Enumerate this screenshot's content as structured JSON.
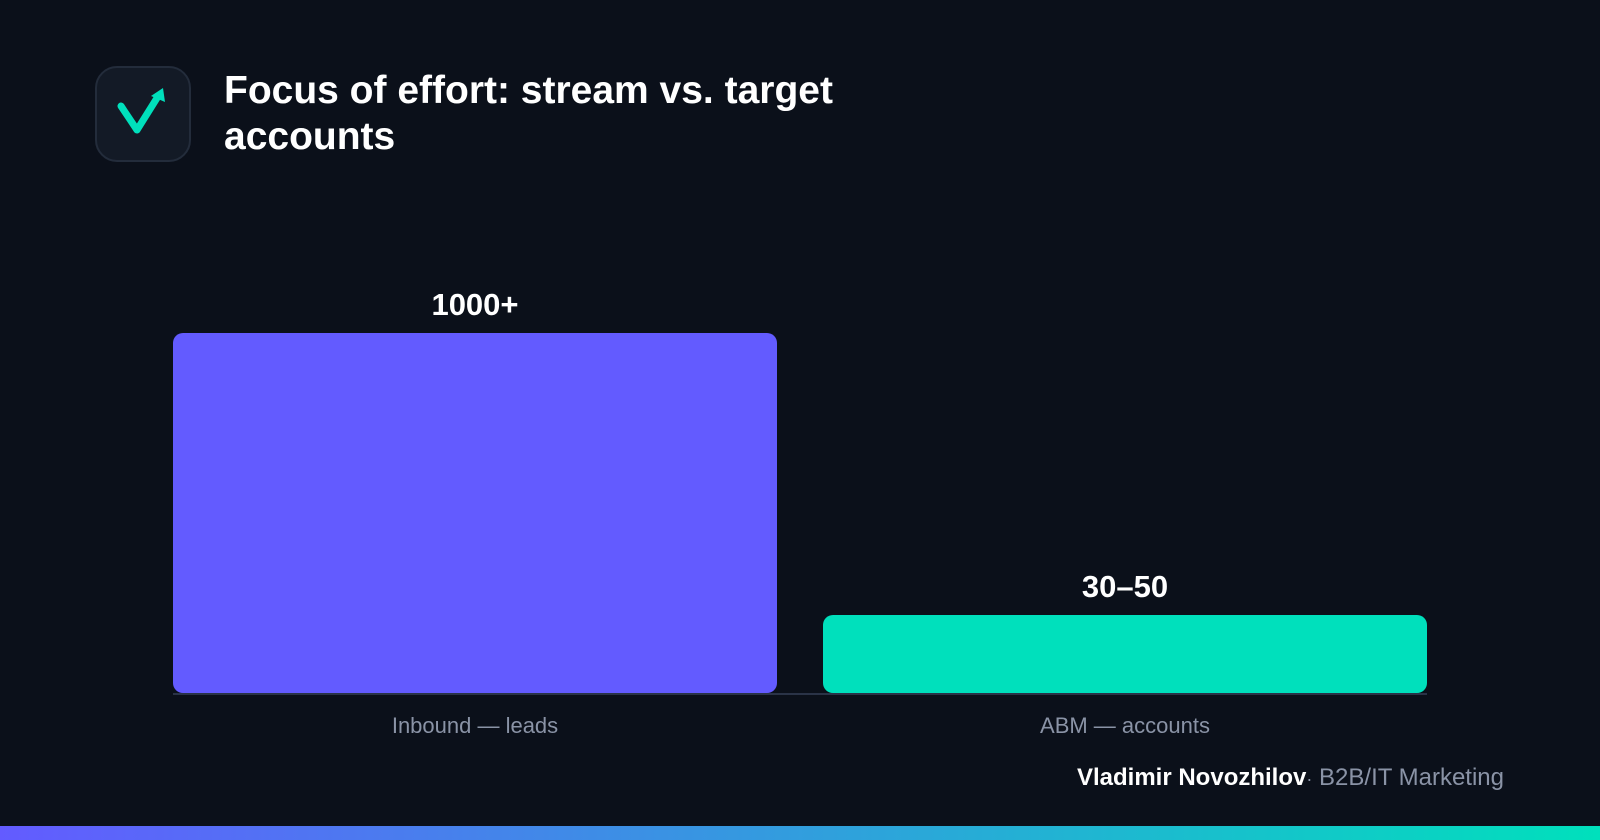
{
  "header": {
    "title": "Focus of effort: stream vs. target accounts",
    "logo_icon": "checkmark-arrow-icon"
  },
  "colors": {
    "background": "#0b101a",
    "inbound": "#635bff",
    "abm": "#00e0bc",
    "label": "#8a93a6",
    "baseline": "#2a3347",
    "gradient_start": "#635bff",
    "gradient_end": "#00e0bc"
  },
  "chart_data": {
    "type": "bar",
    "categories": [
      "Inbound — leads",
      "ABM — accounts"
    ],
    "values": [
      1000,
      40
    ],
    "value_labels": [
      "1000+",
      "30–50"
    ],
    "title": "Focus of effort: stream vs. target accounts",
    "xlabel": "",
    "ylabel": "",
    "grid": false,
    "legend": "none",
    "note": ""
  },
  "footer": {
    "name": "Vladimir Novozhilov",
    "separator": "·",
    "role": "B2B/IT Marketing"
  }
}
